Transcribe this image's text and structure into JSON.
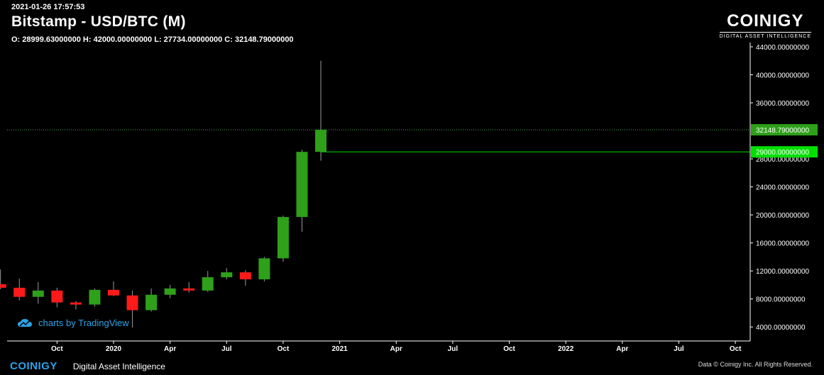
{
  "header": {
    "timestamp": "2021-01-26 17:57:53",
    "title": "Bitstamp - USD/BTC (M)",
    "ohlc": "O: 28999.63000000 H: 42000.00000000 L: 27734.00000000 C: 32148.79000000"
  },
  "logo": {
    "word": "COINIGY",
    "sub": "DIGITAL ASSET INTELLIGENCE"
  },
  "tradingview": {
    "label": "charts by TradingView"
  },
  "footer": {
    "brand": "COINIGY",
    "tagline": "Digital Asset Intelligence",
    "copyright": "Data © Coinigy Inc.  All Rights Reserved."
  },
  "colors": {
    "up": "#2ea01a",
    "down": "#ff1a1a",
    "last_price_line": "#4caf50",
    "open_price_line": "#00e000",
    "link": "#2ba3e8"
  },
  "chart_data": {
    "type": "candlestick",
    "interval": "monthly",
    "ylim": [
      2000,
      44000
    ],
    "y_ticks": [
      4000,
      8000,
      12000,
      16000,
      20000,
      24000,
      28000,
      36000,
      40000,
      44000
    ],
    "y_tick_labels": [
      "4000.00000000",
      "8000.00000000",
      "12000.00000000",
      "16000.00000000",
      "20000.00000000",
      "24000.00000000",
      "28000.00000000",
      "36000.00000000",
      "40000.00000000",
      "44000.00000000"
    ],
    "x_ticks": [
      {
        "label": "Oct",
        "date": "2019-10"
      },
      {
        "label": "2020",
        "date": "2020-01"
      },
      {
        "label": "Apr",
        "date": "2020-04"
      },
      {
        "label": "Jul",
        "date": "2020-07"
      },
      {
        "label": "Oct",
        "date": "2020-10"
      },
      {
        "label": "2021",
        "date": "2021-01"
      },
      {
        "label": "Apr",
        "date": "2021-04"
      },
      {
        "label": "Jul",
        "date": "2021-07"
      },
      {
        "label": "Oct",
        "date": "2021-10"
      },
      {
        "label": "2022",
        "date": "2022-01"
      },
      {
        "label": "Apr",
        "date": "2022-04"
      },
      {
        "label": "Jul",
        "date": "2022-07"
      },
      {
        "label": "Oct",
        "date": "2022-10"
      }
    ],
    "candles": [
      {
        "date": "2019-07",
        "o": 10100,
        "h": 12200,
        "l": 9400,
        "c": 9600
      },
      {
        "date": "2019-08",
        "o": 9600,
        "h": 10900,
        "l": 7800,
        "c": 8300
      },
      {
        "date": "2019-09",
        "o": 8300,
        "h": 10400,
        "l": 7300,
        "c": 9200
      },
      {
        "date": "2019-10",
        "o": 9200,
        "h": 9600,
        "l": 6800,
        "c": 7500
      },
      {
        "date": "2019-11",
        "o": 7500,
        "h": 7700,
        "l": 6500,
        "c": 7200
      },
      {
        "date": "2019-12",
        "o": 7200,
        "h": 9500,
        "l": 6900,
        "c": 9300
      },
      {
        "date": "2020-01",
        "o": 9300,
        "h": 10500,
        "l": 8400,
        "c": 8500
      },
      {
        "date": "2020-02",
        "o": 8500,
        "h": 9200,
        "l": 3900,
        "c": 6400
      },
      {
        "date": "2020-03",
        "o": 6400,
        "h": 9500,
        "l": 6200,
        "c": 8600
      },
      {
        "date": "2020-04",
        "o": 8600,
        "h": 10000,
        "l": 8100,
        "c": 9500
      },
      {
        "date": "2020-05",
        "o": 9500,
        "h": 10400,
        "l": 8900,
        "c": 9200
      },
      {
        "date": "2020-06",
        "o": 9200,
        "h": 12000,
        "l": 9000,
        "c": 11100
      },
      {
        "date": "2020-07",
        "o": 11100,
        "h": 12400,
        "l": 10800,
        "c": 11800
      },
      {
        "date": "2020-08",
        "o": 11800,
        "h": 12100,
        "l": 9900,
        "c": 10800
      },
      {
        "date": "2020-09",
        "o": 10800,
        "h": 14000,
        "l": 10500,
        "c": 13800
      },
      {
        "date": "2020-10",
        "o": 13800,
        "h": 19900,
        "l": 13300,
        "c": 19700
      },
      {
        "date": "2020-11",
        "o": 19700,
        "h": 29300,
        "l": 17600,
        "c": 29000
      },
      {
        "date": "2020-12",
        "o": 28999.63,
        "h": 42000,
        "l": 27734,
        "c": 32148.79
      }
    ],
    "price_lines": [
      {
        "value": 32148.79,
        "label": "32148.79000000",
        "style": "dotted"
      },
      {
        "value": 29000,
        "label": "29000.00000000",
        "style": "solid"
      }
    ]
  }
}
